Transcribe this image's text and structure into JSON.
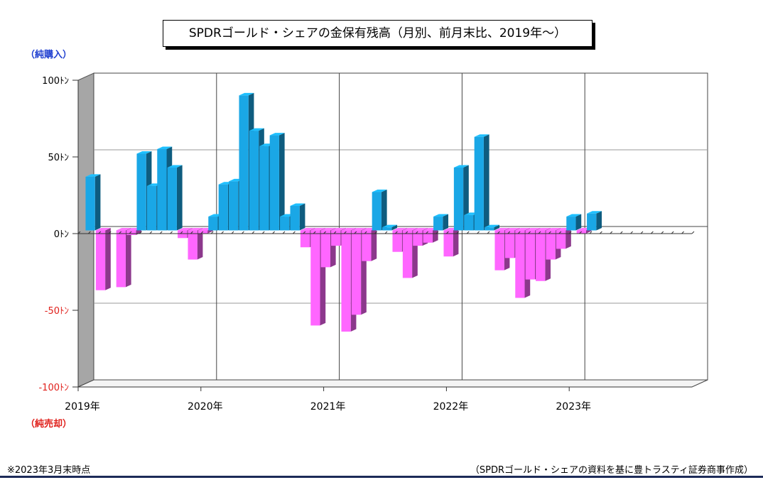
{
  "title": "SPDRゴールド・シェアの金保有残高（月別、前月末比、2019年～）",
  "labels": {
    "buy": "（純購入）",
    "sell": "（純売却）"
  },
  "notes": {
    "as_of": "※2023年3月末時点",
    "source": "（SPDRゴールド・シェアの資料を基に豊トラスティ証券商事作成）"
  },
  "colors": {
    "positive": "#1aa7e6",
    "negative": "#ff66ff",
    "grid": "#9a9a9a",
    "side_wall": "#a6a6a6",
    "footer_rule": "#1c2a58"
  },
  "chart_data": {
    "type": "bar",
    "title": "SPDRゴールド・シェアの金保有残高（月別、前月末比、2019年～）",
    "xlabel": "",
    "ylabel": "",
    "ylim": [
      -100,
      100
    ],
    "grid": true,
    "y_ticks": [
      {
        "value": 100,
        "label": "100ﾄﾝ"
      },
      {
        "value": 50,
        "label": "50ﾄﾝ"
      },
      {
        "value": 0,
        "label": "0ﾄﾝ"
      },
      {
        "value": -50,
        "label": "-50ﾄﾝ"
      },
      {
        "value": -100,
        "label": "-100ﾄﾝ"
      }
    ],
    "x_ticks": [
      "2019年",
      "2020年",
      "2021年",
      "2022年",
      "2023年"
    ],
    "months_per_year": 12,
    "values": [
      35,
      -39,
      0,
      -37,
      -3,
      50,
      29,
      53,
      41,
      -5,
      -19,
      -2,
      9,
      30,
      32,
      88,
      65,
      55,
      62,
      9,
      16,
      -11,
      -62,
      -24,
      -10,
      -66,
      -55,
      -20,
      25,
      2,
      -14,
      -31,
      -10,
      -8,
      9,
      -17,
      41,
      10,
      61,
      2,
      -26,
      -18,
      -44,
      -32,
      -33,
      -19,
      -12,
      9,
      -2,
      11,
      0,
      0,
      0,
      0,
      0,
      0,
      0,
      0,
      0,
      0
    ]
  }
}
